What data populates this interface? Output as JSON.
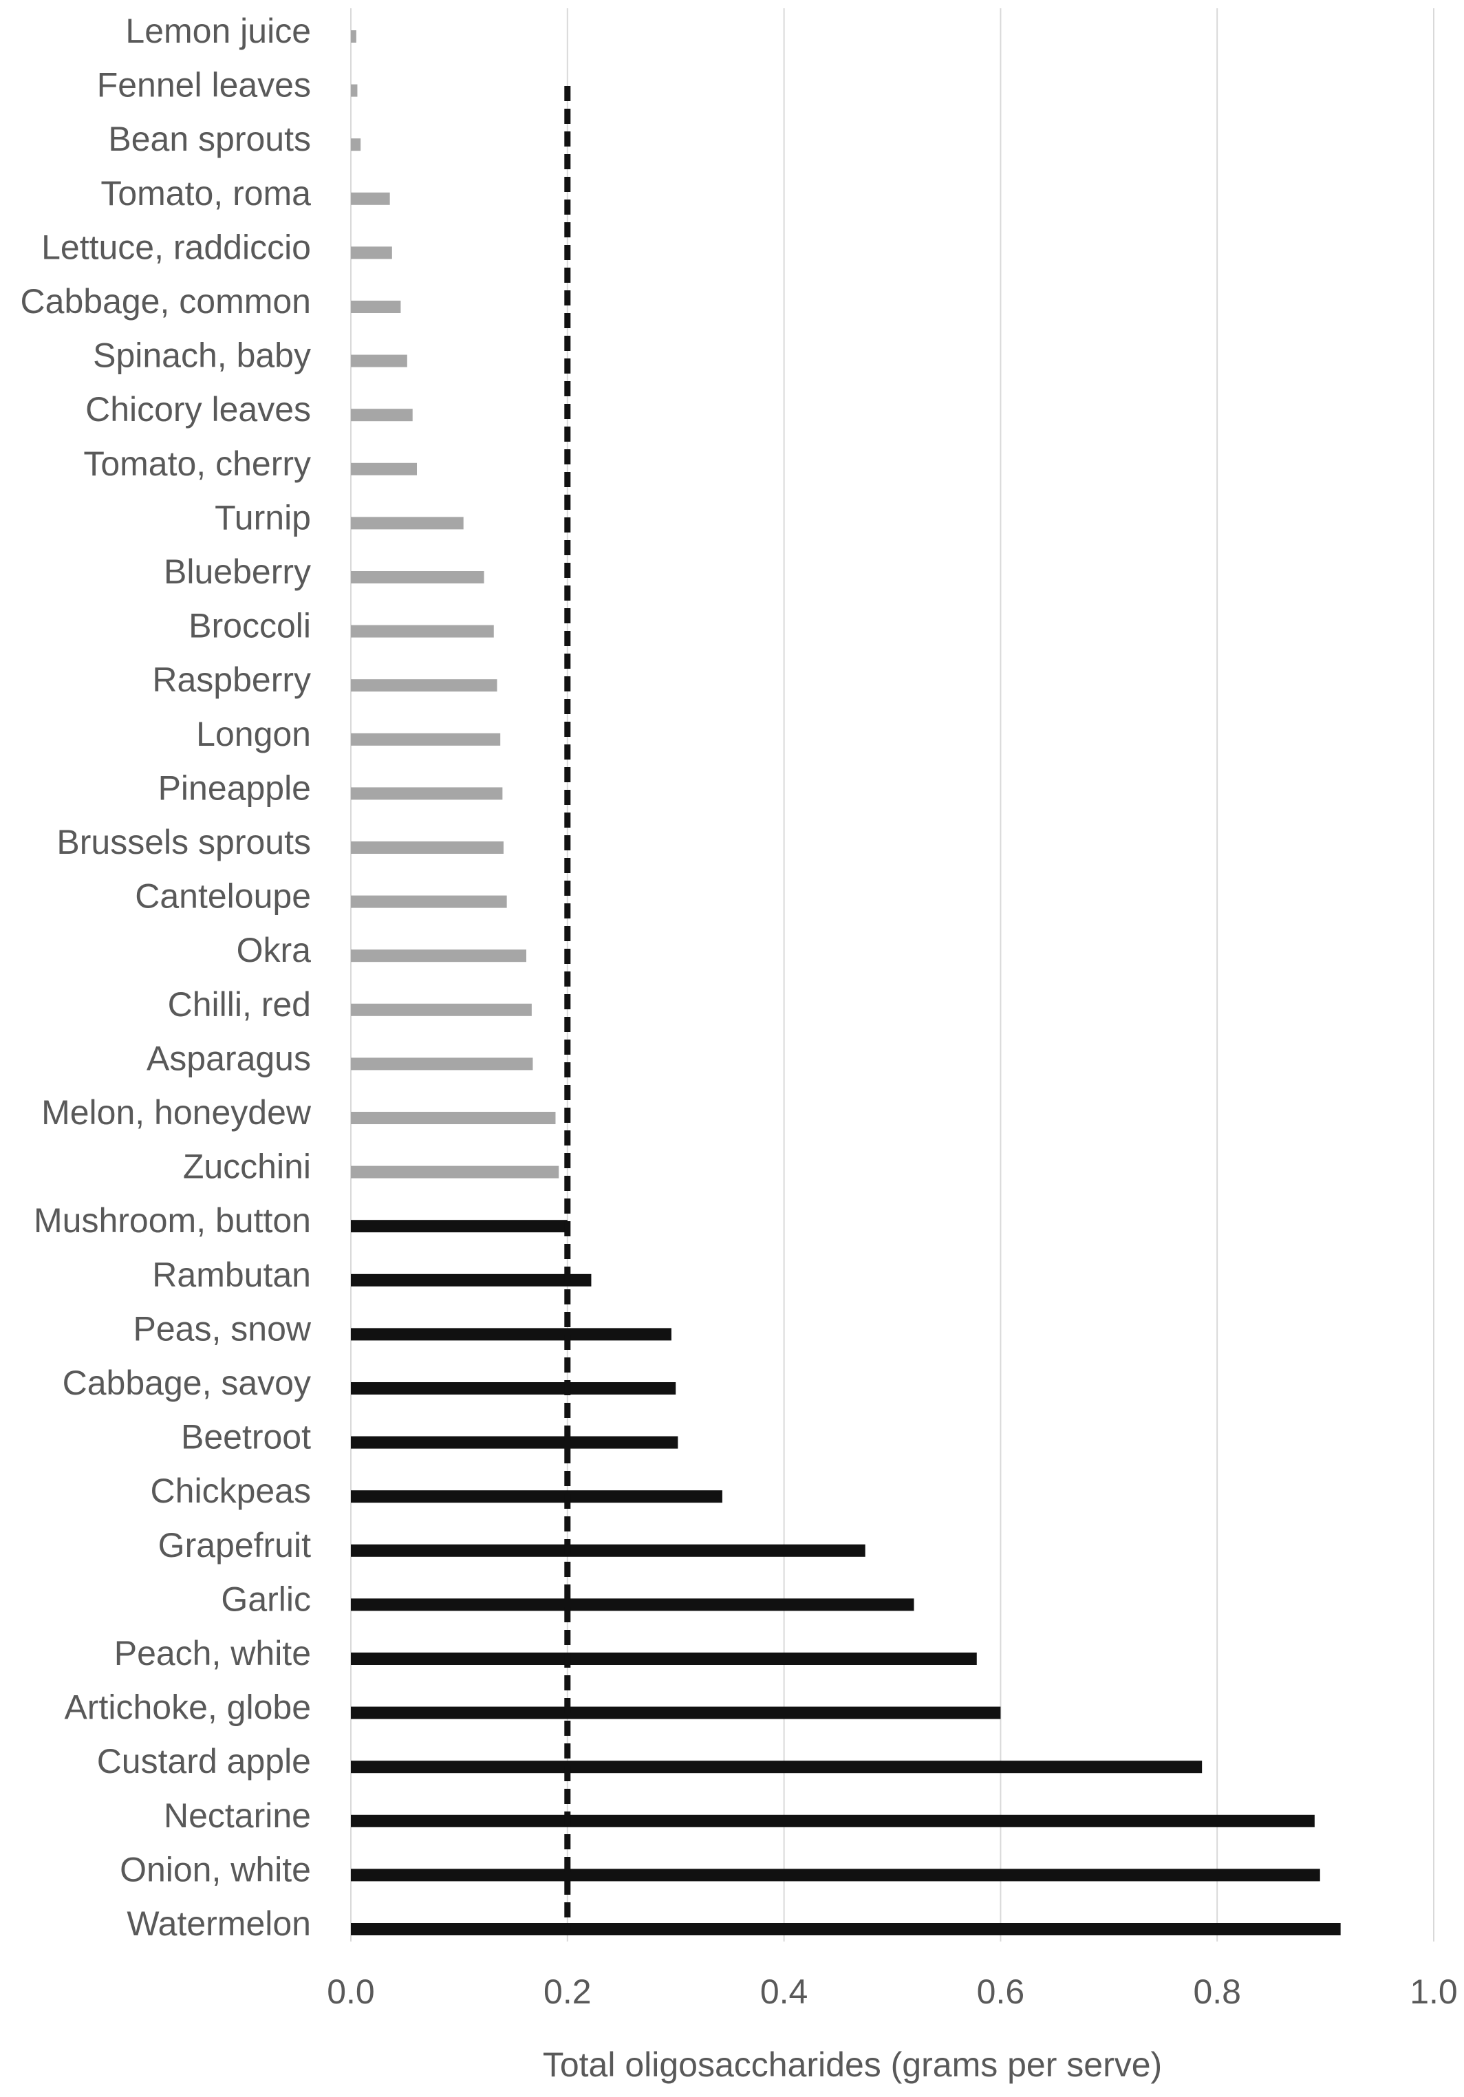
{
  "chart_data": {
    "type": "bar",
    "orientation": "horizontal",
    "title": "",
    "xlabel": "Total oligosaccharides (grams per serve)",
    "ylabel": "",
    "xlim": [
      0,
      1.0
    ],
    "xticks": [
      "0.0",
      "0.2",
      "0.4",
      "0.6",
      "0.8",
      "1.0"
    ],
    "xtick_values": [
      0,
      0.2,
      0.4,
      0.6,
      0.8,
      1.0
    ],
    "grid": "vertical",
    "threshold": 0.2,
    "threshold_style": "dashed",
    "colors": {
      "below_threshold": "#a6a6a6",
      "above_threshold": "#111111",
      "threshold_line": "#111111",
      "grid": "#d9d9d9"
    },
    "categories": [
      "Lemon juice",
      "Fennel leaves",
      "Bean sprouts",
      "Tomato, roma",
      "Lettuce, raddiccio",
      "Cabbage, common",
      "Spinach, baby",
      "Chicory leaves",
      "Tomato, cherry",
      "Turnip",
      "Blueberry",
      "Broccoli",
      "Raspberry",
      "Longon",
      "Pineapple",
      "Brussels sprouts",
      "Canteloupe",
      "Okra",
      "Chilli, red",
      "Asparagus",
      "Melon, honeydew",
      "Zucchini",
      "Mushroom, button",
      "Rambutan",
      "Peas, snow",
      "Cabbage, savoy",
      "Beetroot",
      "Chickpeas",
      "Grapefruit",
      "Garlic",
      "Peach, white",
      "Artichoke, globe",
      "Custard apple",
      "Nectarine",
      "Onion, white",
      "Watermelon"
    ],
    "values": [
      0.005,
      0.006,
      0.009,
      0.036,
      0.038,
      0.046,
      0.052,
      0.057,
      0.061,
      0.104,
      0.123,
      0.132,
      0.135,
      0.138,
      0.14,
      0.141,
      0.144,
      0.162,
      0.167,
      0.168,
      0.189,
      0.192,
      0.2,
      0.222,
      0.296,
      0.3,
      0.302,
      0.343,
      0.475,
      0.52,
      0.578,
      0.6,
      0.786,
      0.89,
      0.895,
      0.914
    ]
  }
}
